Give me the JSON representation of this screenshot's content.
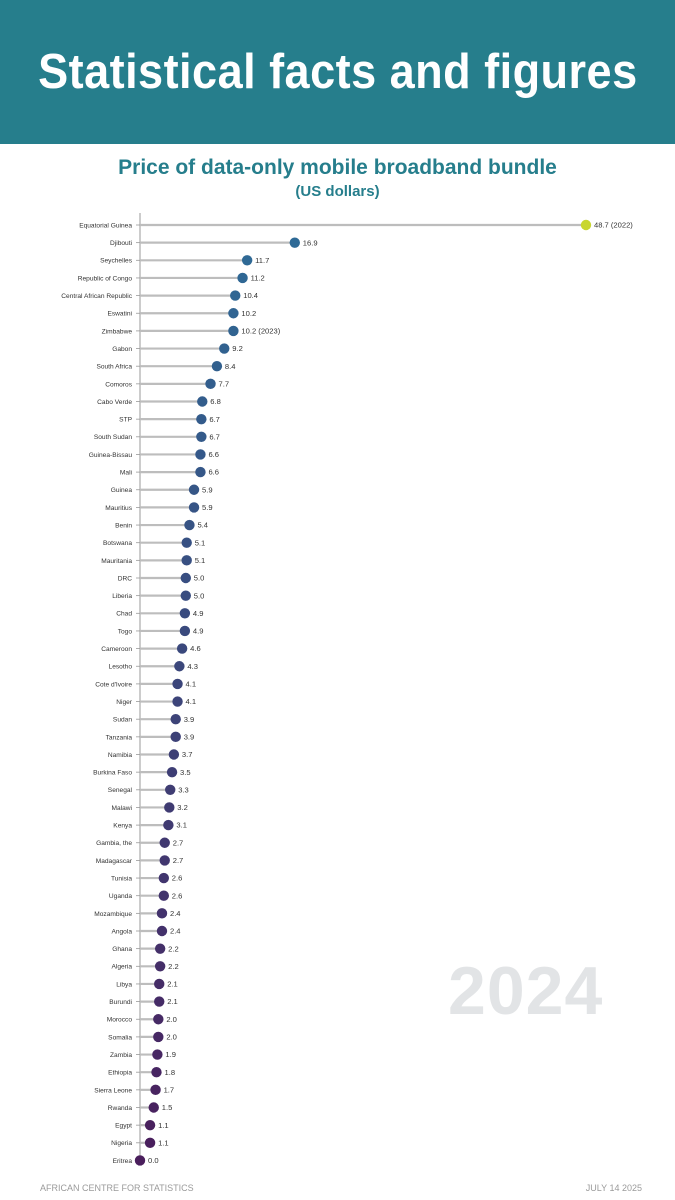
{
  "banner": {
    "title": "Statistical facts and figures"
  },
  "chart_data": {
    "type": "lollipop",
    "title": "Price of data-only mobile broadband bundle",
    "subtitle": "(US dollars)",
    "orientation": "horizontal",
    "categories": [
      "Equatorial Guinea",
      "Djibouti",
      "Seychelles",
      "Republic of Congo",
      "Central African Republic",
      "Eswatini",
      "Zimbabwe",
      "Gabon",
      "South Africa",
      "Comoros",
      "Cabo Verde",
      "STP",
      "South Sudan",
      "Guinea-Bissau",
      "Mali",
      "Guinea",
      "Mauritius",
      "Benin",
      "Botswana",
      "Mauritania",
      "DRC",
      "Liberia",
      "Chad",
      "Togo",
      "Cameroon",
      "Lesotho",
      "Cote d'Ivoire",
      "Niger",
      "Sudan",
      "Tanzania",
      "Namibia",
      "Burkina Faso",
      "Senegal",
      "Malawi",
      "Kenya",
      "Gambia, the",
      "Madagascar",
      "Tunisia",
      "Uganda",
      "Mozambique",
      "Angola",
      "Ghana",
      "Algeria",
      "Libya",
      "Burundi",
      "Morocco",
      "Somalia",
      "Zambia",
      "Ethiopia",
      "Sierra Leone",
      "Rwanda",
      "Egypt",
      "Nigeria",
      "Eritrea"
    ],
    "values": [
      48.7,
      16.9,
      11.7,
      11.2,
      10.4,
      10.2,
      10.2,
      9.2,
      8.4,
      7.7,
      6.8,
      6.7,
      6.7,
      6.6,
      6.6,
      5.9,
      5.9,
      5.4,
      5.1,
      5.1,
      5.0,
      5.0,
      4.9,
      4.9,
      4.6,
      4.3,
      4.1,
      4.1,
      3.9,
      3.9,
      3.7,
      3.5,
      3.3,
      3.2,
      3.1,
      2.7,
      2.7,
      2.6,
      2.6,
      2.4,
      2.4,
      2.2,
      2.2,
      2.1,
      2.1,
      2.0,
      2.0,
      1.9,
      1.8,
      1.7,
      1.5,
      1.1,
      1.1,
      0.0
    ],
    "value_labels": [
      "48.7 (2022)",
      "16.9",
      "11.7",
      "11.2",
      "10.4",
      "10.2",
      "10.2 (2023)",
      "9.2",
      "8.4",
      "7.7",
      "6.8",
      "6.7",
      "6.7",
      "6.6",
      "6.6",
      "5.9",
      "5.9",
      "5.4",
      "5.1",
      "5.1",
      "5.0",
      "5.0",
      "4.9",
      "4.9",
      "4.6",
      "4.3",
      "4.1",
      "4.1",
      "3.9",
      "3.9",
      "3.7",
      "3.5",
      "3.3",
      "3.2",
      "3.1",
      "2.7",
      "2.7",
      "2.6",
      "2.6",
      "2.4",
      "2.4",
      "2.2",
      "2.2",
      "2.1",
      "2.1",
      "2.0",
      "2.0",
      "1.9",
      "1.8",
      "1.7",
      "1.5",
      "1.1",
      "1.1",
      "0.0"
    ],
    "xlim": [
      0,
      48.7
    ],
    "grid": false,
    "colors": {
      "highlight": "#c8d630",
      "high": "#2e6a96",
      "low": "#4a1e5c",
      "stem": "#bdbdbd",
      "axis": "#999999"
    }
  },
  "watermark": "2024",
  "footer": {
    "source": "AFRICAN CENTRE FOR STATISTICS",
    "date": "JULY 14 2025"
  }
}
